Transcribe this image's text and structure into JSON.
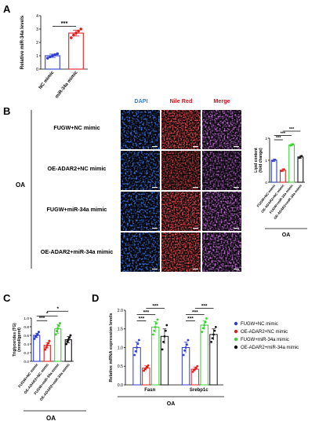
{
  "panel_labels": {
    "A": "A",
    "B": "B",
    "C": "C",
    "D": "D"
  },
  "microscopy": {
    "headers": [
      {
        "text": "DAPI",
        "color": "#3a7fd0"
      },
      {
        "text": "Nile Red",
        "color": "#c8141e"
      },
      {
        "text": "Merge",
        "color": "#c8141e"
      }
    ],
    "row_labels": [
      "FUGW+NC mimic",
      "OE-ADAR2+NC mimic",
      "FUGW+miR-34a mimic",
      "OE-ADAR2+miR-34a mimic"
    ],
    "group_label": "OA",
    "channel_colors": {
      "dapi": "#1a4fb8",
      "nile": "#c01818",
      "merge": "#7a3a9a"
    },
    "nile_intensity": [
      0.55,
      0.35,
      0.85,
      0.7
    ]
  },
  "chart_data": [
    {
      "panel": "A",
      "type": "bar",
      "categories": [
        "NC mimic",
        "miR-34a mimic"
      ],
      "values": [
        1.0,
        2.7
      ],
      "errors": [
        0.12,
        0.22
      ],
      "points": [
        [
          0.82,
          0.92,
          1.0,
          1.08,
          1.15
        ],
        [
          2.35,
          2.55,
          2.7,
          2.85,
          3.0
        ]
      ],
      "colors": [
        "#2e3ecf",
        "#e0201e"
      ],
      "ylabel": "Relative miR-34a levels",
      "ylim": [
        0,
        4
      ],
      "yticks": [
        0,
        1,
        2,
        3,
        4
      ],
      "significance": [
        {
          "from": 0,
          "to": 1,
          "label": "***"
        }
      ]
    },
    {
      "panel": "B",
      "type": "bar",
      "categories": [
        "FUGW+NC mimic",
        "OE-ADAR2+NC mimic",
        "FUGW+miR-34a mimic",
        "OE-ADAR2+miR-34a mimic"
      ],
      "values": [
        1.0,
        0.55,
        1.7,
        1.15
      ],
      "errors": [
        0.05,
        0.06,
        0.05,
        0.06
      ],
      "points": [
        [
          0.96,
          1.0,
          1.03
        ],
        [
          0.5,
          0.55,
          0.6
        ],
        [
          1.66,
          1.7,
          1.74
        ],
        [
          1.1,
          1.15,
          1.2
        ]
      ],
      "colors": [
        "#2e3ecf",
        "#e0201e",
        "#39d130",
        "#111111"
      ],
      "ylabel": "Lipid content (fold change)",
      "ylim": [
        0,
        2
      ],
      "yticks": [
        0,
        1,
        2
      ],
      "group_label": "OA",
      "significance": [
        {
          "from": 0,
          "to": 1,
          "label": "***"
        },
        {
          "from": 0,
          "to": 2,
          "label": "***"
        },
        {
          "from": 1,
          "to": 3,
          "label": "***"
        }
      ]
    },
    {
      "panel": "C",
      "type": "bar",
      "categories": [
        "FUGW+NC mimic",
        "OE-ADAR2+NC mimic",
        "FUGW+miR-34a mimic",
        "OE-ADAR2+miR-34a mimic"
      ],
      "values": [
        0.6,
        0.37,
        0.75,
        0.5
      ],
      "errors": [
        0.05,
        0.06,
        0.1,
        0.07
      ],
      "points": [
        [
          0.52,
          0.57,
          0.6,
          0.63,
          0.68
        ],
        [
          0.27,
          0.32,
          0.37,
          0.42,
          0.47
        ],
        [
          0.62,
          0.7,
          0.76,
          0.82,
          0.88
        ],
        [
          0.4,
          0.46,
          0.5,
          0.55,
          0.6
        ]
      ],
      "colors": [
        "#2e3ecf",
        "#e0201e",
        "#39d130",
        "#111111"
      ],
      "ylabel": "Triglycerides (TG) (mmol/gprot)",
      "ylim": [
        0,
        1.0
      ],
      "yticks": [
        0.0,
        0.2,
        0.4,
        0.6,
        0.8,
        1.0
      ],
      "group_label": "OA",
      "significance": [
        {
          "from": 0,
          "to": 1,
          "label": "***"
        },
        {
          "from": 0,
          "to": 2,
          "label": "*"
        },
        {
          "from": 1,
          "to": 3,
          "label": "*"
        }
      ]
    },
    {
      "panel": "D",
      "type": "bar",
      "categories": [
        "Fasn",
        "Srebp1c"
      ],
      "series": [
        {
          "name": "FUGW+NC mimic",
          "color": "#2e3ecf",
          "values": [
            1.0,
            1.0
          ],
          "errors": [
            0.15,
            0.15
          ],
          "points": [
            [
              0.8,
              0.9,
              1.0,
              1.1,
              1.2
            ],
            [
              0.8,
              0.92,
              1.0,
              1.08,
              1.2
            ]
          ]
        },
        {
          "name": "OE-ADAR2+NC mimic",
          "color": "#e0201e",
          "values": [
            0.45,
            0.42
          ],
          "errors": [
            0.06,
            0.06
          ],
          "points": [
            [
              0.38,
              0.42,
              0.45,
              0.48,
              0.52
            ],
            [
              0.35,
              0.4,
              0.42,
              0.45,
              0.5
            ]
          ]
        },
        {
          "name": "FUGW+miR-34a mimic",
          "color": "#39d130",
          "values": [
            1.55,
            1.6
          ],
          "errors": [
            0.15,
            0.12
          ],
          "points": [
            [
              1.35,
              1.45,
              1.55,
              1.65,
              1.75
            ],
            [
              1.42,
              1.52,
              1.6,
              1.68,
              1.78
            ]
          ]
        },
        {
          "name": "OE-ADAR2+miR-34a mimic",
          "color": "#111111",
          "values": [
            1.3,
            1.35
          ],
          "errors": [
            0.2,
            0.15
          ],
          "points": [
            [
              0.95,
              1.15,
              1.3,
              1.45,
              1.6
            ],
            [
              1.15,
              1.25,
              1.35,
              1.45,
              1.55
            ]
          ]
        }
      ],
      "ylabel": "Relative mRNA expression levels",
      "ylim": [
        0,
        2.0
      ],
      "yticks": [
        0.0,
        0.5,
        1.0,
        1.5,
        2.0
      ],
      "group_label": "OA",
      "significance": [
        {
          "cat": 0,
          "from": 0,
          "to": 1,
          "label": "***"
        },
        {
          "cat": 0,
          "from": 0,
          "to": 2,
          "label": "***"
        },
        {
          "cat": 0,
          "from": 1,
          "to": 3,
          "label": "***"
        },
        {
          "cat": 1,
          "from": 0,
          "to": 1,
          "label": "***"
        },
        {
          "cat": 1,
          "from": 0,
          "to": 2,
          "label": "***"
        },
        {
          "cat": 1,
          "from": 1,
          "to": 3,
          "label": "***"
        }
      ],
      "legend_placement": "right"
    }
  ]
}
